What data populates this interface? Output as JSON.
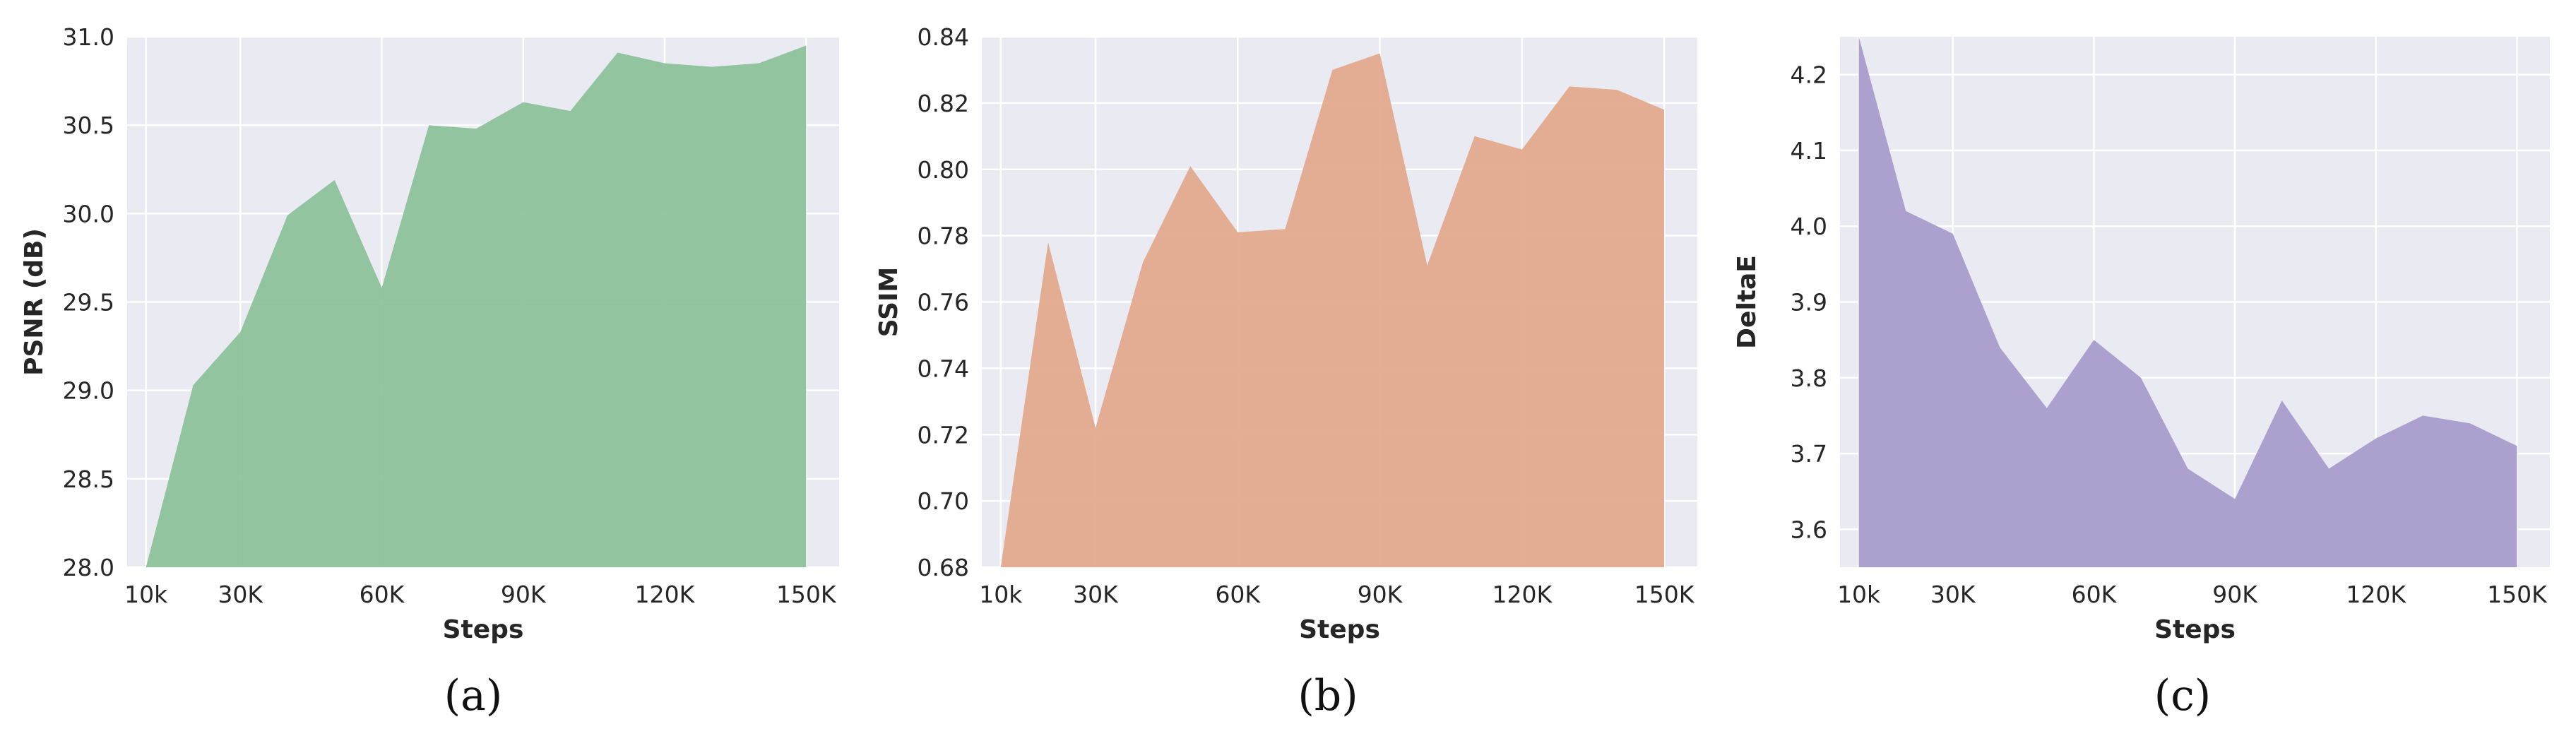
{
  "chart_data": [
    {
      "type": "area",
      "xlabel": "Steps",
      "ylabel": "PSNR (dB)",
      "caption": "(a)",
      "color": "#8dc29a",
      "x": [
        10000,
        20000,
        30000,
        40000,
        50000,
        60000,
        70000,
        80000,
        90000,
        100000,
        110000,
        120000,
        130000,
        140000,
        150000
      ],
      "values": [
        28.0,
        29.03,
        29.33,
        29.99,
        30.19,
        29.58,
        30.5,
        30.48,
        30.63,
        30.58,
        30.91,
        30.85,
        30.83,
        30.85,
        30.95
      ],
      "xticks": [
        10000,
        30000,
        60000,
        90000,
        120000,
        150000
      ],
      "xtick_labels": [
        "10k",
        "30K",
        "60K",
        "90K",
        "120K",
        "150K"
      ],
      "yticks": [
        28.0,
        28.5,
        29.0,
        29.5,
        30.0,
        30.5,
        31.0
      ],
      "ytick_labels": [
        "28.0",
        "28.5",
        "29.0",
        "29.5",
        "30.0",
        "30.5",
        "31.0"
      ],
      "xlim": [
        6000,
        157000
      ],
      "ylim": [
        28.0,
        31.0
      ],
      "grid": true
    },
    {
      "type": "area",
      "xlabel": "Steps",
      "ylabel": "SSIM",
      "caption": "(b)",
      "color": "#e3aa8e",
      "x": [
        10000,
        20000,
        30000,
        40000,
        50000,
        60000,
        70000,
        80000,
        90000,
        100000,
        110000,
        120000,
        130000,
        140000,
        150000
      ],
      "values": [
        0.68,
        0.778,
        0.722,
        0.772,
        0.801,
        0.781,
        0.782,
        0.83,
        0.835,
        0.771,
        0.81,
        0.806,
        0.825,
        0.824,
        0.818
      ],
      "xticks": [
        10000,
        30000,
        60000,
        90000,
        120000,
        150000
      ],
      "xtick_labels": [
        "10k",
        "30K",
        "60K",
        "90K",
        "120K",
        "150K"
      ],
      "yticks": [
        0.68,
        0.7,
        0.72,
        0.74,
        0.76,
        0.78,
        0.8,
        0.82,
        0.84
      ],
      "ytick_labels": [
        "0.68",
        "0.70",
        "0.72",
        "0.74",
        "0.76",
        "0.78",
        "0.80",
        "0.82",
        "0.84"
      ],
      "xlim": [
        6000,
        157000
      ],
      "ylim": [
        0.68,
        0.84
      ],
      "grid": true
    },
    {
      "type": "area",
      "xlabel": "Steps",
      "ylabel": "DeltaE",
      "caption": "(c)",
      "color": "#a89ccb",
      "x": [
        10000,
        20000,
        30000,
        40000,
        50000,
        60000,
        70000,
        80000,
        90000,
        100000,
        110000,
        120000,
        130000,
        140000,
        150000
      ],
      "values": [
        4.25,
        4.02,
        3.99,
        3.84,
        3.76,
        3.85,
        3.8,
        3.68,
        3.64,
        3.77,
        3.68,
        3.72,
        3.75,
        3.74,
        3.71
      ],
      "xticks": [
        10000,
        30000,
        60000,
        90000,
        120000,
        150000
      ],
      "xtick_labels": [
        "10k",
        "30K",
        "60K",
        "90K",
        "120K",
        "150K"
      ],
      "yticks": [
        3.6,
        3.7,
        3.8,
        3.9,
        4.0,
        4.1,
        4.2
      ],
      "ytick_labels": [
        "3.6",
        "3.7",
        "3.8",
        "3.9",
        "4.0",
        "4.1",
        "4.2"
      ],
      "xlim": [
        6000,
        157000
      ],
      "ylim": [
        3.55,
        4.25
      ],
      "grid": true
    }
  ]
}
